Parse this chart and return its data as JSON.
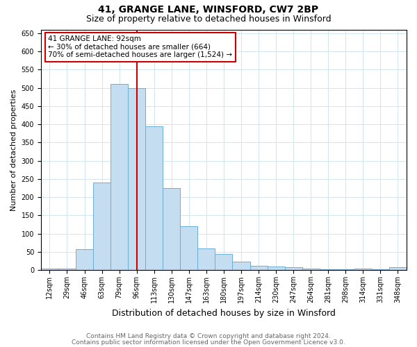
{
  "title1": "41, GRANGE LANE, WINSFORD, CW7 2BP",
  "title2": "Size of property relative to detached houses in Winsford",
  "xlabel": "Distribution of detached houses by size in Winsford",
  "ylabel": "Number of detached properties",
  "categories": [
    "12sqm",
    "29sqm",
    "46sqm",
    "63sqm",
    "79sqm",
    "96sqm",
    "113sqm",
    "130sqm",
    "147sqm",
    "163sqm",
    "180sqm",
    "197sqm",
    "214sqm",
    "230sqm",
    "247sqm",
    "264sqm",
    "281sqm",
    "298sqm",
    "314sqm",
    "331sqm",
    "348sqm"
  ],
  "values": [
    5,
    5,
    58,
    240,
    510,
    500,
    395,
    225,
    120,
    60,
    45,
    23,
    11,
    10,
    7,
    5,
    2,
    2,
    5,
    2,
    7
  ],
  "bar_color": "#c5ddf0",
  "bar_edge_color": "#6baed6",
  "vline_x_index": 5,
  "vline_color": "#cc0000",
  "annotation_text": "41 GRANGE LANE: 92sqm\n← 30% of detached houses are smaller (664)\n70% of semi-detached houses are larger (1,524) →",
  "annotation_box_color": "#ffffff",
  "annotation_box_edge": "#cc0000",
  "ylim": [
    0,
    660
  ],
  "yticks": [
    0,
    50,
    100,
    150,
    200,
    250,
    300,
    350,
    400,
    450,
    500,
    550,
    600,
    650
  ],
  "footer1": "Contains HM Land Registry data © Crown copyright and database right 2024.",
  "footer2": "Contains public sector information licensed under the Open Government Licence v3.0.",
  "bg_color": "#ffffff",
  "grid_color": "#d0e4f0",
  "title1_fontsize": 10,
  "title2_fontsize": 9,
  "xlabel_fontsize": 9,
  "ylabel_fontsize": 8,
  "tick_fontsize": 7,
  "footer_fontsize": 6.5,
  "ann_fontsize": 7.5
}
